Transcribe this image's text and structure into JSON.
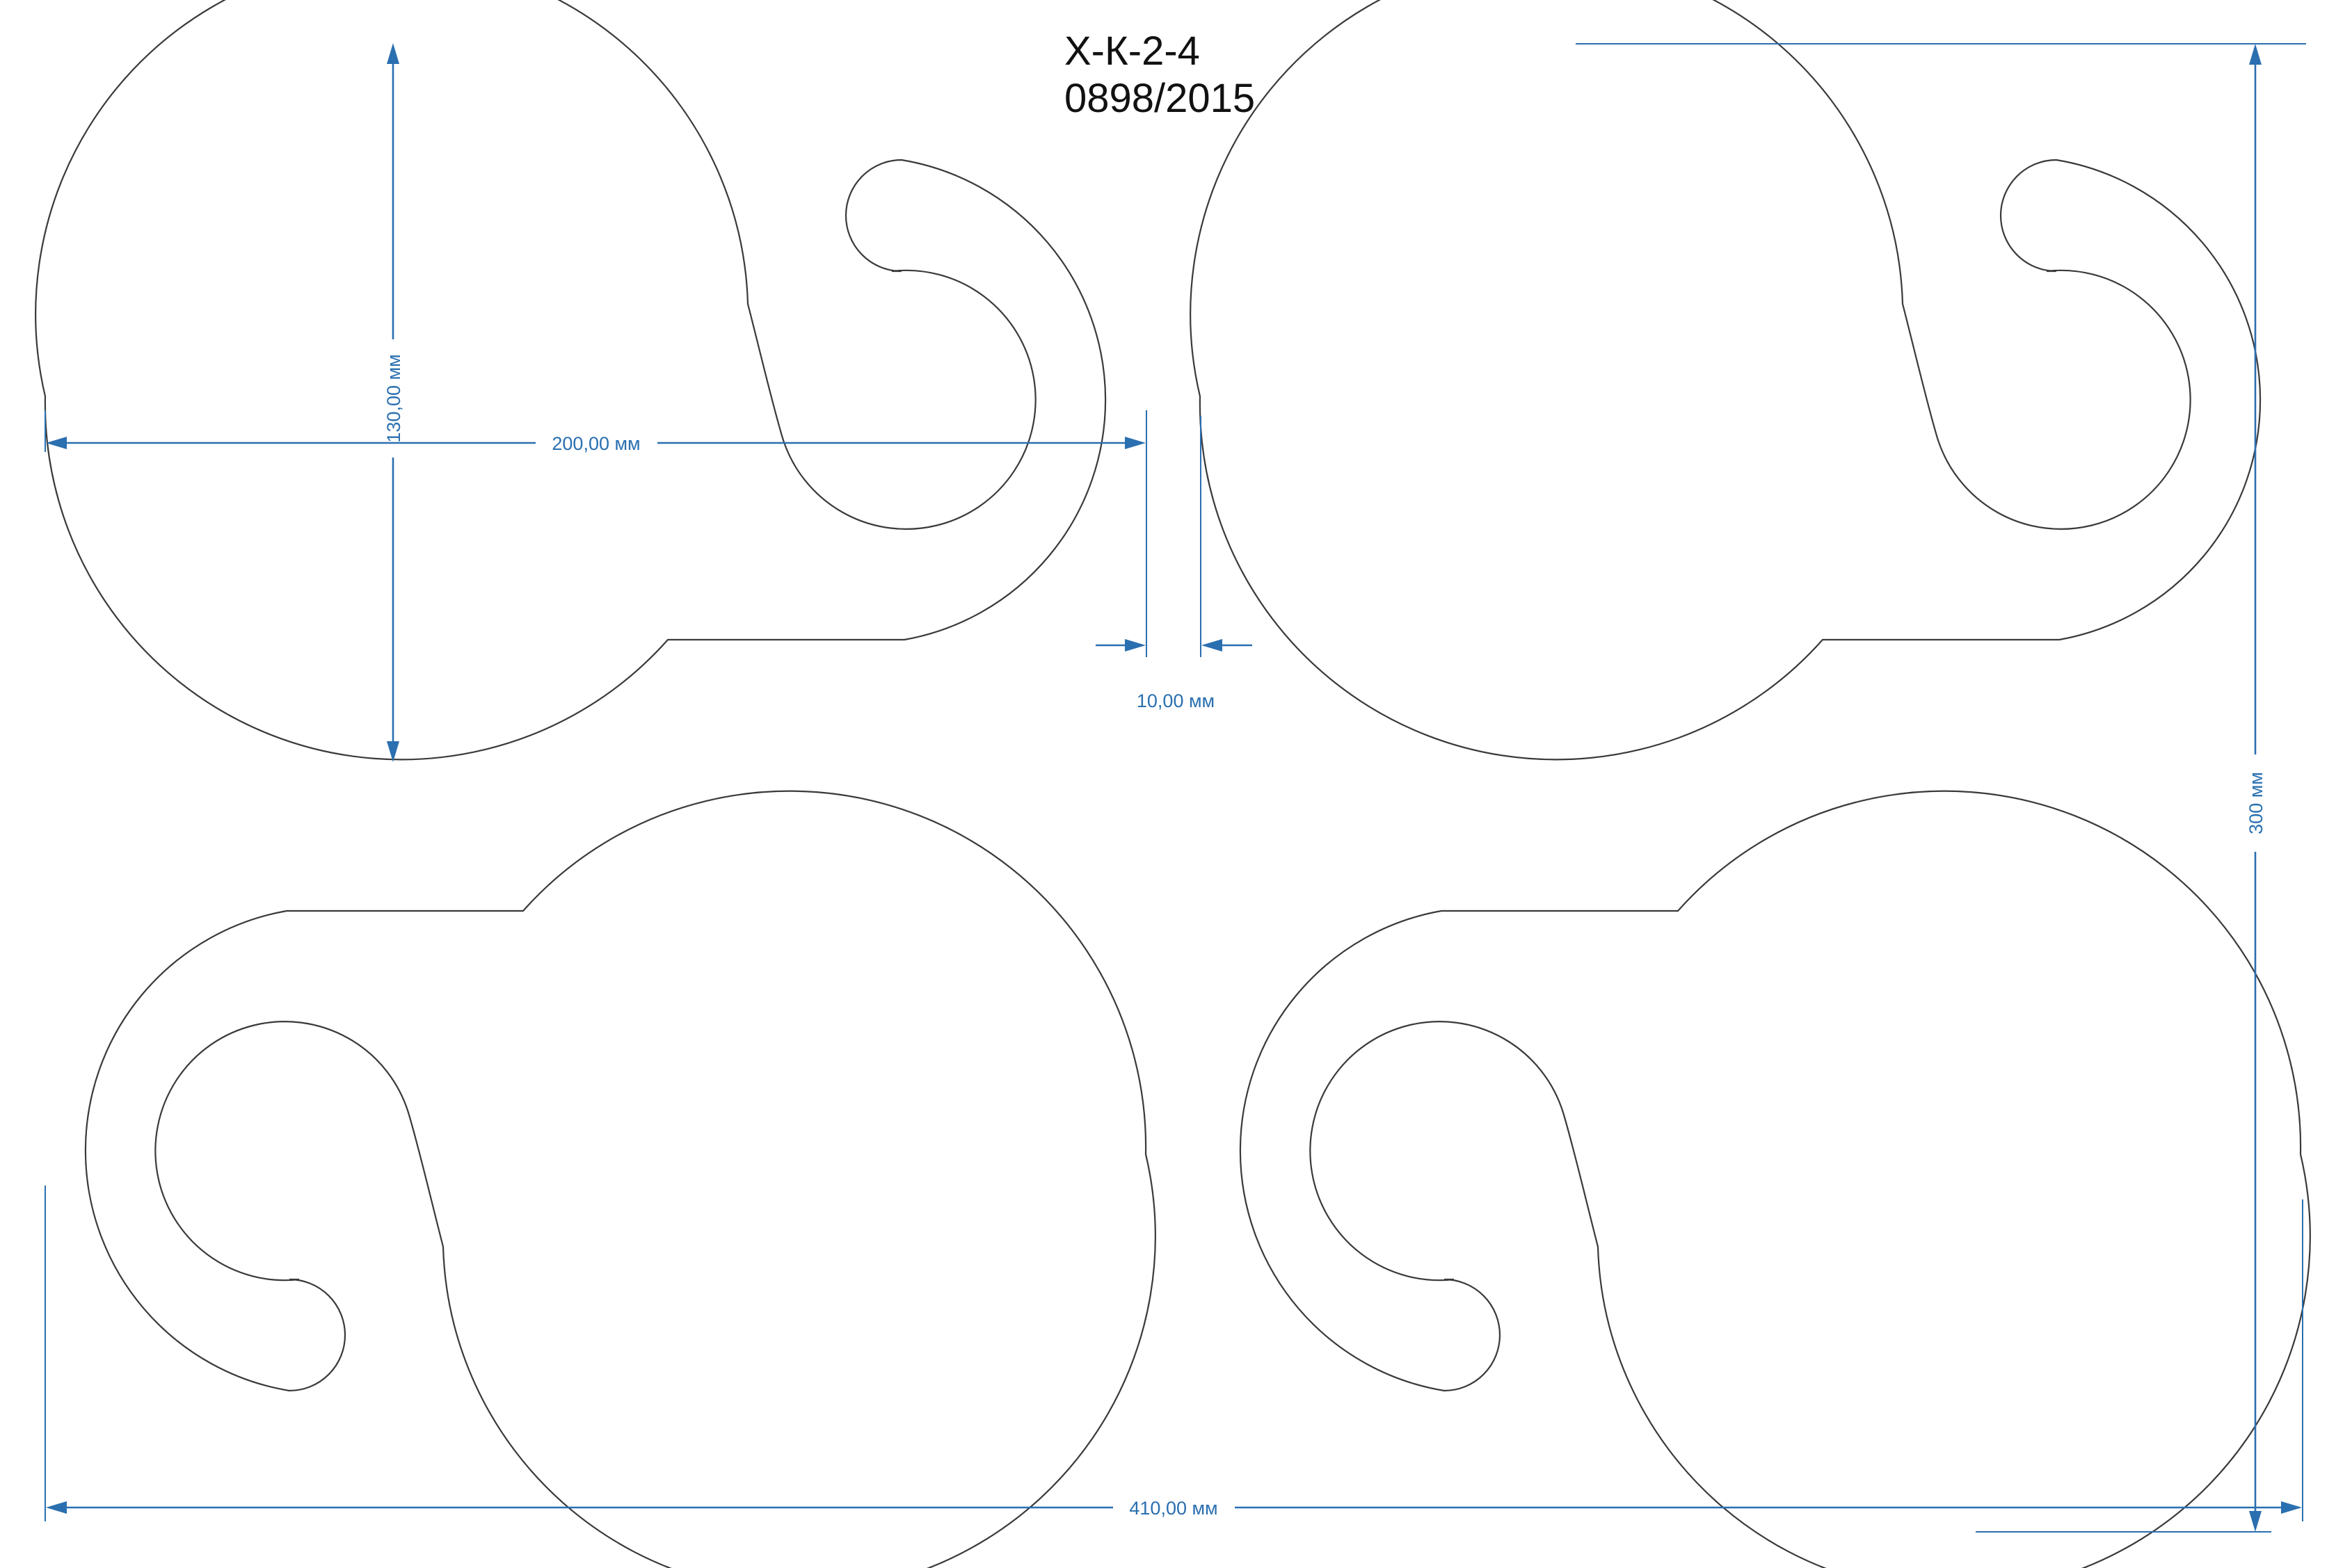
{
  "title": {
    "code": "Х-К-2-4",
    "number": "0898/2015"
  },
  "dimensions": {
    "diameter": "130,00 мм",
    "width": "200,00 мм",
    "gap": "10,00 мм",
    "height": "300 мм",
    "total_width": "410,00 мм"
  },
  "colors": {
    "dimension": "#2a6fb0",
    "outline": "#3a3a3a"
  }
}
